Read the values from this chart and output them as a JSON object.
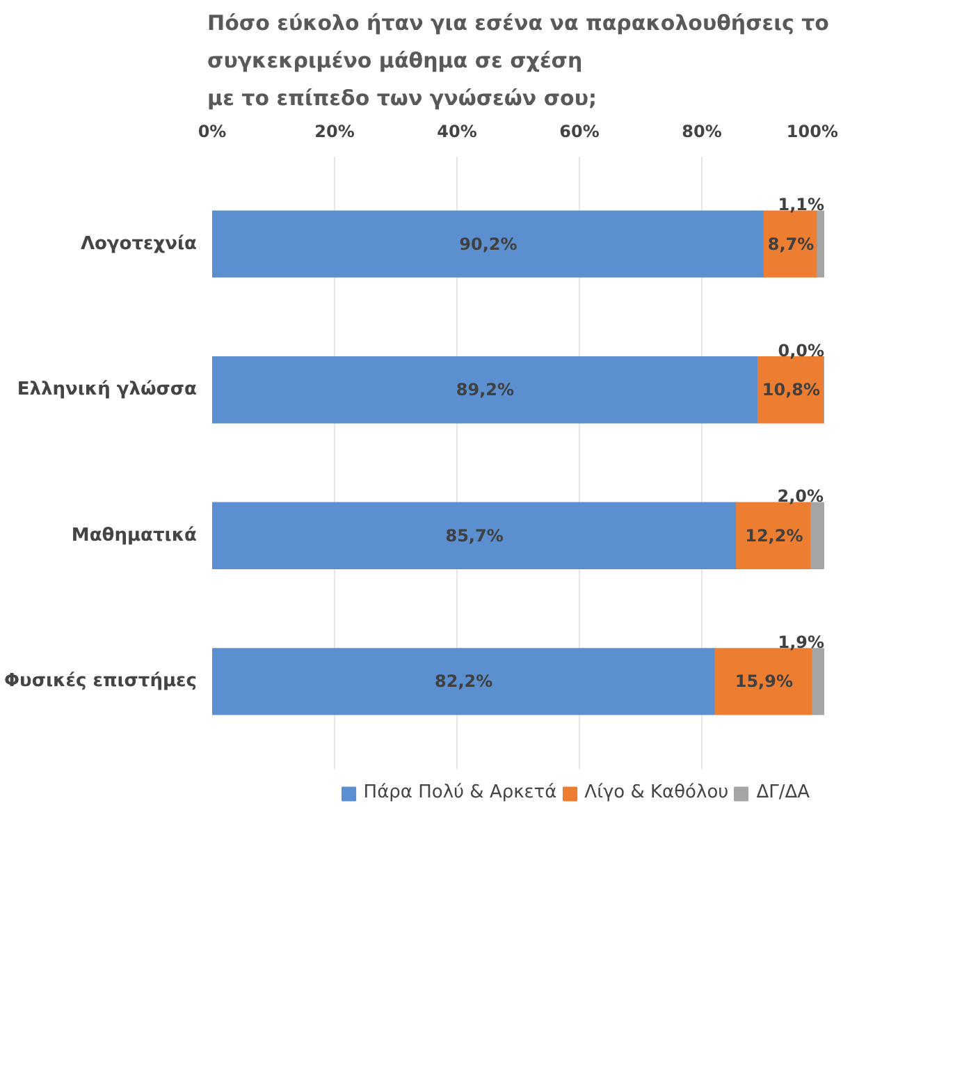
{
  "chart_data": {
    "type": "bar",
    "orientation": "horizontal",
    "stacked": true,
    "title": "Πόσο εύκολο ήταν για εσένα να παρακολουθήσεις το\nσυγκεκριμένο μάθημα σε σχέση\nμε το επίπεδο των γνώσεών σου;",
    "categories": [
      "Λογοτεχνία",
      "Ελληνική γλώσσα",
      "Μαθηματικά",
      "Φυσικές επιστήμες"
    ],
    "series": [
      {
        "name": "Πάρα Πολύ & Αρκετά",
        "color": "#5b8fd0",
        "values": [
          90.2,
          89.2,
          85.7,
          82.2
        ],
        "value_labels": [
          "90,2%",
          "89,2%",
          "85,7%",
          "82,2%"
        ]
      },
      {
        "name": "Λίγο & Καθόλου",
        "color": "#ed7d31",
        "values": [
          8.7,
          10.8,
          12.2,
          15.9
        ],
        "value_labels": [
          "8,7%",
          "10,8%",
          "12,2%",
          "15,9%"
        ]
      },
      {
        "name": "ΔΓ/ΔΑ",
        "color": "#a5a5a5",
        "values": [
          1.1,
          0.0,
          2.0,
          1.9
        ],
        "value_labels": [
          "1,1%",
          "0,0%",
          "2,0%",
          "1,9%"
        ]
      }
    ],
    "xlim": [
      0,
      100
    ],
    "xticks": [
      {
        "value": 0,
        "label": "0%"
      },
      {
        "value": 20,
        "label": "20%"
      },
      {
        "value": 40,
        "label": "40%"
      },
      {
        "value": 60,
        "label": "60%"
      },
      {
        "value": 80,
        "label": "80%"
      },
      {
        "value": 100,
        "label": "100%"
      }
    ],
    "grid": "x",
    "legend": "bottom"
  }
}
